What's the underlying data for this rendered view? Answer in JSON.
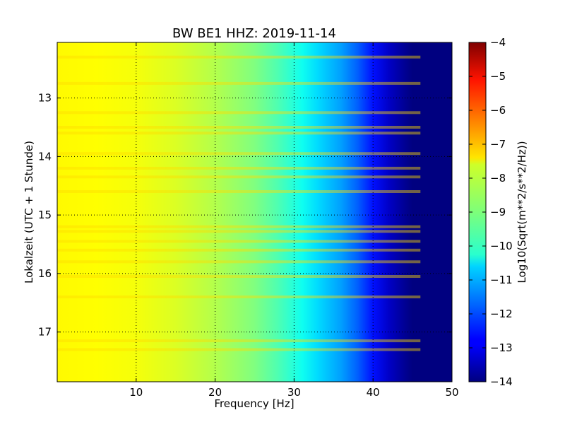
{
  "chart_data": {
    "type": "heatmap",
    "title": "BW BE1 HHZ: 2019-11-14",
    "xlabel": "Frequency [Hz]",
    "ylabel": "Lokalzeit (UTC + 1 Stunde)",
    "xlim": [
      0,
      50
    ],
    "ylim": [
      12.05,
      17.85
    ],
    "x_ticks": [
      10,
      20,
      30,
      40,
      50
    ],
    "y_ticks": [
      13,
      14,
      15,
      16,
      17
    ],
    "grid": true,
    "colorbar": {
      "label": "Log10(Sqrt(m**2/s**2/Hz))",
      "range": [
        -14,
        -4
      ],
      "ticks": [
        -4,
        -5,
        -6,
        -7,
        -8,
        -9,
        -10,
        -11,
        -12,
        -13,
        -14
      ],
      "colormap": "jet"
    },
    "frequency_profile": [
      {
        "f": 0,
        "v": -7.7
      },
      {
        "f": 5,
        "v": -7.75
      },
      {
        "f": 10,
        "v": -7.85
      },
      {
        "f": 15,
        "v": -8.1
      },
      {
        "f": 20,
        "v": -8.5
      },
      {
        "f": 25,
        "v": -9.0
      },
      {
        "f": 28,
        "v": -9.5
      },
      {
        "f": 31,
        "v": -10.1
      },
      {
        "f": 33,
        "v": -10.6
      },
      {
        "f": 36,
        "v": -11.2
      },
      {
        "f": 38,
        "v": -11.8
      },
      {
        "f": 40,
        "v": -12.6
      },
      {
        "f": 42,
        "v": -13.3
      },
      {
        "f": 44,
        "v": -13.8
      },
      {
        "f": 45,
        "v": -14.0
      },
      {
        "f": 50,
        "v": -14.0
      }
    ],
    "bright_bands_hours": [
      12.3,
      12.75,
      13.25,
      13.5,
      13.6,
      13.95,
      14.2,
      14.35,
      14.6,
      15.2,
      15.28,
      15.45,
      15.6,
      15.8,
      16.05,
      16.4,
      17.15,
      17.3
    ]
  }
}
